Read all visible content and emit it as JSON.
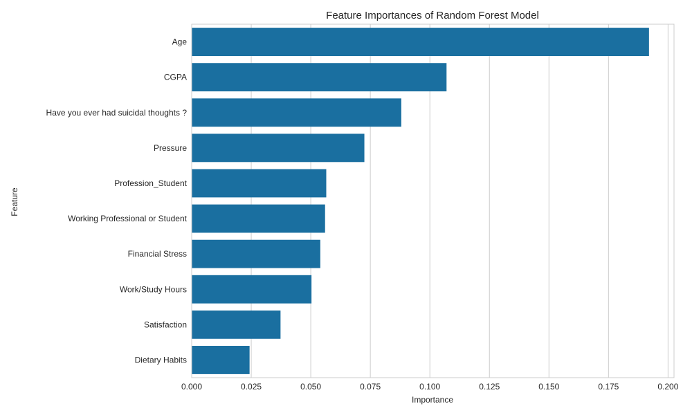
{
  "chart_data": {
    "type": "bar",
    "orientation": "horizontal",
    "title": "Feature Importances of Random Forest Model",
    "xlabel": "Importance",
    "ylabel": "Feature",
    "categories": [
      "Age",
      "CGPA",
      "Have you ever had suicidal thoughts ?",
      "Pressure",
      "Profession_Student",
      "Working Professional or Student",
      "Financial Stress",
      "Work/Study Hours",
      "Satisfaction",
      "Dietary Habits"
    ],
    "values": [
      0.192,
      0.107,
      0.088,
      0.0725,
      0.0565,
      0.056,
      0.054,
      0.0503,
      0.0373,
      0.0243
    ],
    "xlim": [
      0.0,
      0.2025
    ],
    "xticks": [
      0.0,
      0.025,
      0.05,
      0.075,
      0.1,
      0.125,
      0.15,
      0.175,
      0.2
    ],
    "xtick_labels": [
      "0.000",
      "0.025",
      "0.050",
      "0.075",
      "0.100",
      "0.125",
      "0.150",
      "0.175",
      "0.200"
    ],
    "grid": "vertical",
    "colors": {
      "bar": "#1a6fa0",
      "grid": "#cccccc",
      "text": "#262626"
    }
  }
}
